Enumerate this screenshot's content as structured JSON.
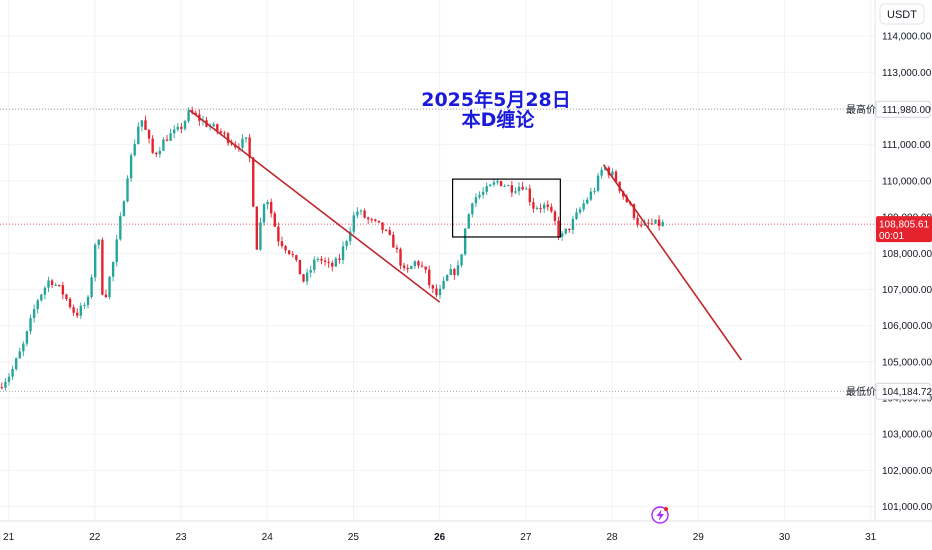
{
  "currency": "USDT",
  "title": "2025年5月28日",
  "subtitle": "本D缠论",
  "price_tag": {
    "value": "108,805.61",
    "timer": "00:01",
    "color": "#e5232f"
  },
  "high_marker": {
    "label": "最高价",
    "value": "111,980.00"
  },
  "low_marker": {
    "label": "最低价",
    "value": "104,184.72"
  },
  "colors": {
    "up": "#26a69a",
    "down": "#e5232f",
    "trendline": "#c0262d",
    "annotation": "#1a1adb",
    "box": "#000000"
  },
  "icons": [
    "lightning-icon"
  ],
  "chart_data": {
    "type": "candlestick",
    "ylim": [
      100600,
      115000
    ],
    "yticks": [
      "101,000.00",
      "102,000.00",
      "103,000.00",
      "104,000.00",
      "105,000.00",
      "106,000.00",
      "107,000.00",
      "108,000.00",
      "109,000.00",
      "110,000.00",
      "111,000.00",
      "112,000.00",
      "113,000.00",
      "114,000.00"
    ],
    "yticks_values": [
      101000,
      102000,
      103000,
      104000,
      105000,
      106000,
      107000,
      108000,
      109000,
      110000,
      111000,
      112000,
      113000,
      114000
    ],
    "xlim": [
      20.9,
      31.05
    ],
    "xticks": [
      "21",
      "22",
      "23",
      "24",
      "25",
      "26",
      "27",
      "28",
      "29",
      "30",
      "31"
    ],
    "xticks_values": [
      21,
      22,
      23,
      24,
      25,
      26,
      27,
      28,
      29,
      30,
      31
    ],
    "bold_xticks": [
      "26"
    ],
    "price_path": [
      [
        20.9,
        104300
      ],
      [
        21.05,
        104700
      ],
      [
        21.2,
        105500
      ],
      [
        21.35,
        106700
      ],
      [
        21.5,
        107300
      ],
      [
        21.65,
        106900
      ],
      [
        21.8,
        106300
      ],
      [
        21.95,
        106700
      ],
      [
        22.05,
        108800
      ],
      [
        22.12,
        106600
      ],
      [
        22.25,
        107900
      ],
      [
        22.4,
        110200
      ],
      [
        22.55,
        111800
      ],
      [
        22.7,
        110700
      ],
      [
        22.85,
        111200
      ],
      [
        23.0,
        111400
      ],
      [
        23.12,
        111900
      ],
      [
        23.3,
        111600
      ],
      [
        23.5,
        111300
      ],
      [
        23.65,
        111000
      ],
      [
        23.8,
        111100
      ],
      [
        23.9,
        108200
      ],
      [
        24.0,
        109700
      ],
      [
        24.15,
        108400
      ],
      [
        24.3,
        108000
      ],
      [
        24.45,
        107200
      ],
      [
        24.6,
        107900
      ],
      [
        24.75,
        107600
      ],
      [
        24.85,
        107800
      ],
      [
        24.97,
        108600
      ],
      [
        25.05,
        109200
      ],
      [
        25.2,
        108900
      ],
      [
        25.35,
        108700
      ],
      [
        25.5,
        108200
      ],
      [
        25.62,
        107400
      ],
      [
        25.75,
        107800
      ],
      [
        25.85,
        107500
      ],
      [
        25.92,
        107000
      ],
      [
        26.0,
        106800
      ],
      [
        26.12,
        107400
      ],
      [
        26.25,
        107600
      ],
      [
        26.3,
        108500
      ],
      [
        26.4,
        109500
      ],
      [
        26.55,
        109700
      ],
      [
        26.7,
        110000
      ],
      [
        26.85,
        109800
      ],
      [
        27.0,
        109900
      ],
      [
        27.1,
        109300
      ],
      [
        27.25,
        109300
      ],
      [
        27.35,
        108900
      ],
      [
        27.42,
        108400
      ],
      [
        27.55,
        108800
      ],
      [
        27.7,
        109400
      ],
      [
        27.82,
        109800
      ],
      [
        27.92,
        110400
      ],
      [
        28.05,
        110100
      ],
      [
        28.15,
        109600
      ],
      [
        28.25,
        109200
      ],
      [
        28.35,
        108700
      ],
      [
        28.45,
        108800
      ],
      [
        28.58,
        108805
      ]
    ],
    "trendlines": [
      {
        "from": [
          23.1,
          111950
        ],
        "to": [
          26.0,
          106650
        ]
      },
      {
        "from": [
          27.9,
          110450
        ],
        "to": [
          29.5,
          105050
        ]
      }
    ],
    "box": {
      "x": [
        26.15,
        27.4
      ],
      "y": [
        108450,
        110050
      ]
    },
    "hlines": [
      {
        "y": 111980,
        "style": "dotted"
      },
      {
        "y": 108805.61,
        "style": "dotted"
      },
      {
        "y": 104184.72,
        "style": "dotted"
      }
    ]
  }
}
